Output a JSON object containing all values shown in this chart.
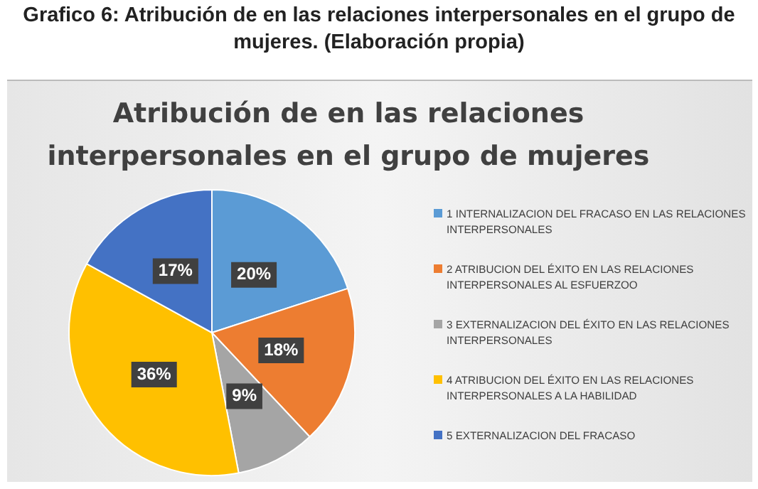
{
  "chart_data": {
    "type": "pie",
    "title": "Atribución de en las relaciones interpersonales en el grupo de mujeres",
    "annotations": [
      "Grafico 6: Atribución de en las relaciones interpersonales en el grupo de mujeres. (Elaboración propia)"
    ],
    "categories": [
      "1 INTERNALIZACION DEL FRACASO EN LAS RELACIONES INTERPERSONALES",
      "2 ATRIBUCION DEL ÉXITO EN LAS RELACIONES INTERPERSONALES AL ESFUERZOO",
      "3 EXTERNALIZACION DEL ÉXITO EN LAS RELACIONES INTERPERSONALES",
      "4 ATRIBUCION DEL ÉXITO EN LAS RELACIONES INTERPERSONALES A LA HABILIDAD",
      "5 EXTERNALIZACION DEL FRACASO"
    ],
    "values": [
      20,
      18,
      9,
      36,
      17
    ],
    "value_labels": [
      "20%",
      "18%",
      "9%",
      "36%",
      "17%"
    ],
    "colors": [
      "#5b9bd5",
      "#ed7d31",
      "#a5a5a5",
      "#ffc000",
      "#4472c4"
    ],
    "legend": "right"
  }
}
